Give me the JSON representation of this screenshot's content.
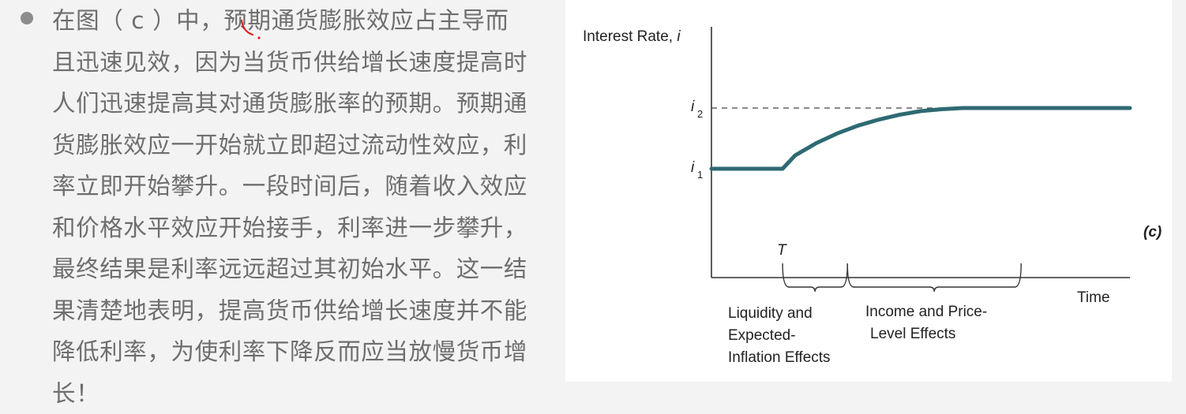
{
  "paragraph": {
    "lines": [
      "在图（ c ）中，预期通货膨胀效应占主导而",
      "且迅速见效，因为当货币供给增长速度提高时",
      "人们迅速提高其对通货膨胀率的预期。预期通",
      "货膨胀效应一开始就立即超过流动性效应，利",
      "率立即开始攀升。一段时间后，随着收入效应",
      "和价格水平效应开始接手，利率进一步攀升，",
      "最终结果是利率远远超过其初始水平。这一结",
      "果清楚地表明，提高货币供给增长速度并不能",
      "降低利率，为使利率下降反而应当放慢货币增",
      "长！"
    ]
  },
  "chart_data": {
    "type": "line",
    "panel_label": "(c)",
    "ylabel_text": "Interest Rate, ",
    "ylabel_var": "i",
    "xlabel": "Time",
    "y_ticks": [
      {
        "base": "i",
        "sub": "1"
      },
      {
        "base": "i",
        "sub": "2"
      }
    ],
    "x_marker": "T",
    "reference_line": {
      "level": "i2",
      "style": "dashed"
    },
    "series": [
      {
        "points": [
          {
            "t": 0.0,
            "level": 0.0
          },
          {
            "t": 0.17,
            "level": 0.0
          },
          {
            "t": 0.2,
            "level": 0.22
          },
          {
            "t": 0.25,
            "level": 0.42
          },
          {
            "t": 0.3,
            "level": 0.58
          },
          {
            "t": 0.35,
            "level": 0.71
          },
          {
            "t": 0.4,
            "level": 0.81
          },
          {
            "t": 0.45,
            "level": 0.89
          },
          {
            "t": 0.5,
            "level": 0.95
          },
          {
            "t": 0.55,
            "level": 0.98
          },
          {
            "t": 0.6,
            "level": 1.0
          },
          {
            "t": 1.0,
            "level": 1.0
          }
        ]
      }
    ],
    "braces": [
      {
        "from": 0.17,
        "to": 0.325,
        "label_lines": [
          "Liquidity and",
          "Expected-",
          "Inflation Effects"
        ]
      },
      {
        "from": 0.325,
        "to": 0.74,
        "label_lines": [
          "Income and Price-",
          "Level Effects"
        ]
      }
    ],
    "colors": {
      "curve": "#2e6a73",
      "axis": "#333333",
      "dashed": "#444444"
    }
  }
}
